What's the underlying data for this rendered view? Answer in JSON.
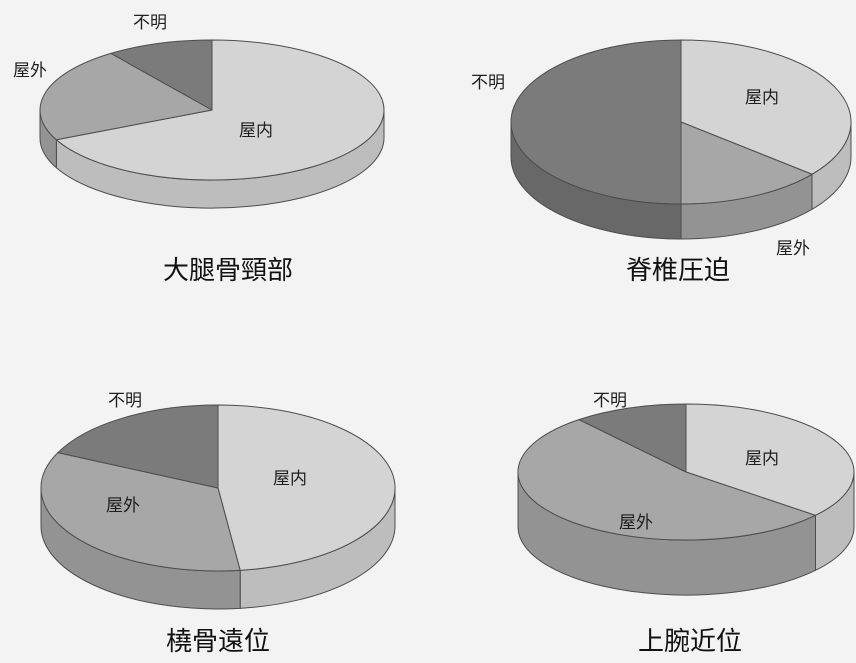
{
  "chart_data": [
    {
      "type": "pie",
      "style": "3d",
      "start": "12 o'clock",
      "direction": "clockwise",
      "title": "大腿骨頸部",
      "categories": [
        "屋内",
        "屋外",
        "不明"
      ],
      "values": [
        68,
        22,
        10
      ]
    },
    {
      "type": "pie",
      "style": "3d",
      "start": "12 o'clock",
      "direction": "clockwise",
      "title": "脊椎圧迫",
      "categories": [
        "屋内",
        "屋外",
        "不明"
      ],
      "values": [
        36,
        14,
        50
      ]
    },
    {
      "type": "pie",
      "style": "3d",
      "start": "12 o'clock",
      "direction": "clockwise",
      "title": "橈骨遠位",
      "categories": [
        "屋内",
        "屋外",
        "不明"
      ],
      "values": [
        48,
        34,
        18
      ]
    },
    {
      "type": "pie",
      "style": "3d",
      "start": "12 o'clock",
      "direction": "clockwise",
      "title": "上腕近位",
      "categories": [
        "屋内",
        "屋外",
        "不明"
      ],
      "values": [
        36,
        53,
        11
      ]
    }
  ],
  "colors": {
    "top": [
      "#d4d4d4",
      "#a7a7a7",
      "#7b7b7b"
    ],
    "side": [
      "#bdbdbd",
      "#939393",
      "#686868"
    ],
    "outline": "#4d4d4d",
    "background": "#f3f3f3"
  }
}
